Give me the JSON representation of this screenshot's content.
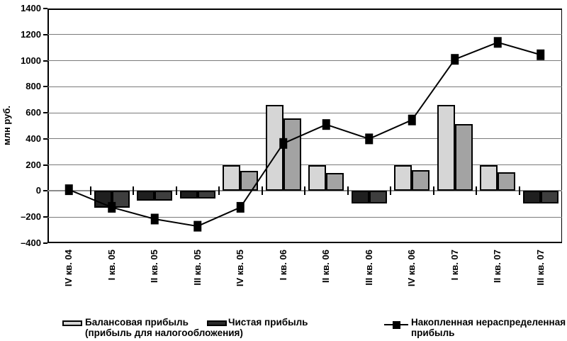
{
  "chart_data": {
    "type": "bar",
    "subtype": "bar-and-line-combo",
    "title": "",
    "ylabel": "млн руб.",
    "xlabel": "",
    "ylim": [
      -400,
      1400
    ],
    "ytick_step": 200,
    "grid": true,
    "legend_position": "bottom",
    "categories": [
      "IV кв. 04",
      "I кв. 05",
      "II кв. 05",
      "III кв. 05",
      "IV кв. 05",
      "I кв. 06",
      "II кв. 06",
      "III кв. 06",
      "IV кв. 06",
      "I кв. 07",
      "II кв. 07",
      "III кв. 07"
    ],
    "series": [
      {
        "name": "Балансовая прибыль (прибыль для налогообложения)",
        "type": "bar",
        "values": [
          0,
          -130,
          -75,
          -60,
          200,
          660,
          200,
          -95,
          200,
          660,
          200,
          -95
        ]
      },
      {
        "name": "Чистая прибыль",
        "type": "bar",
        "values": [
          0,
          -130,
          -75,
          -60,
          155,
          555,
          140,
          -95,
          160,
          515,
          145,
          -95
        ]
      },
      {
        "name": "Накопленная нераспределенная прибыль",
        "type": "line",
        "values": [
          10,
          -125,
          -215,
          -270,
          -125,
          365,
          510,
          400,
          545,
          1010,
          1140,
          1045
        ]
      }
    ]
  },
  "legend": {
    "item1_line1": "Балансовая прибыль",
    "item1_line2": "(прибыль для налогообложения)",
    "item2": "Чистая прибыль",
    "item3_line1": "Накопленная нераспределенная",
    "item3_line2": "прибыль"
  },
  "colors": {
    "bar_light": "#d6d6d6",
    "bar_medium": "#a3a3a3",
    "bar_neg_dark": "#1f1f1f",
    "bar_neg_gray": "#3e3e3e",
    "line": "#000000",
    "gridline": "#7a7a7a",
    "zero_line": "#8c8c8c",
    "axis": "#000000"
  }
}
